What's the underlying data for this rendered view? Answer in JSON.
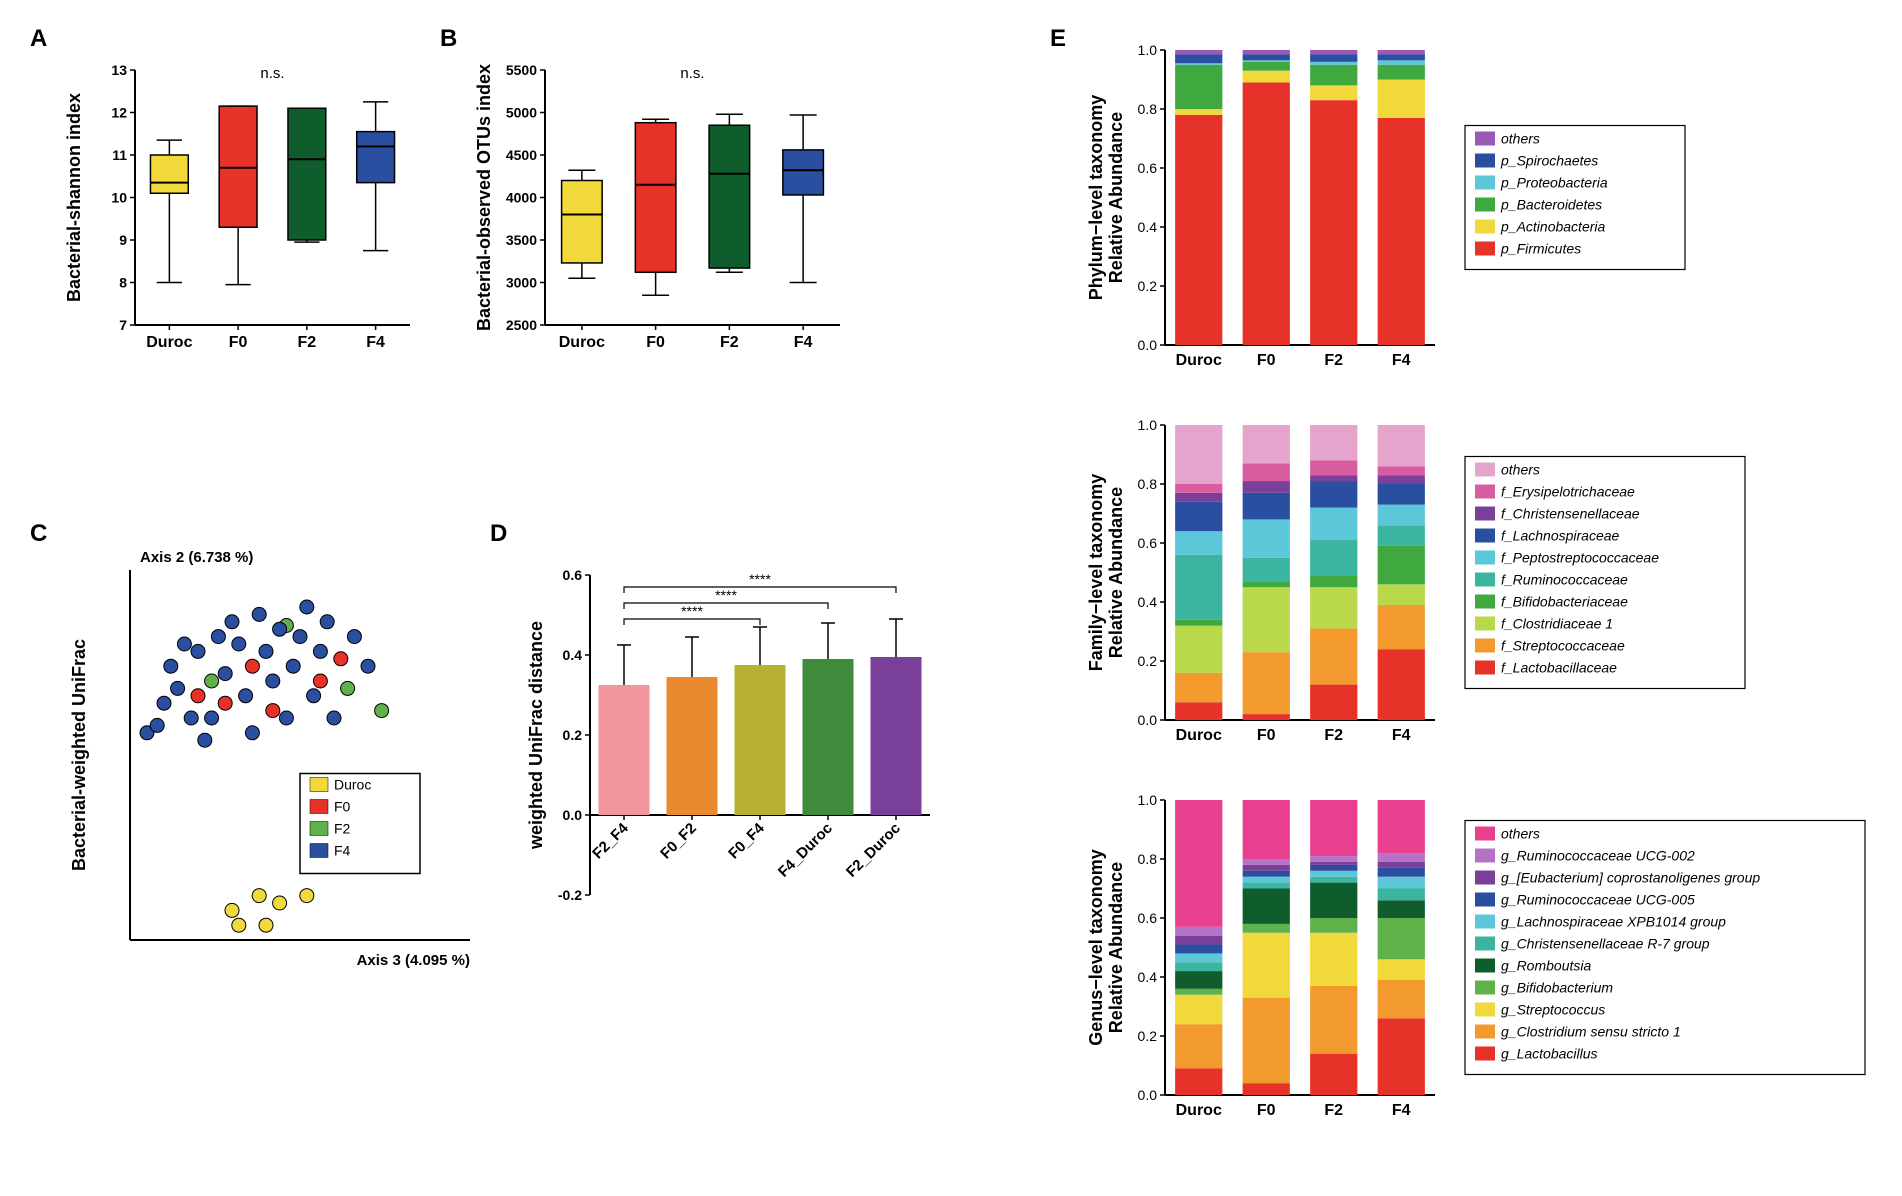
{
  "colors": {
    "duroc": "#f2d93b",
    "f0": "#e63228",
    "f2": "#0f5c2d",
    "f4": "#2a4fa0",
    "f2_green_light": "#5fb149"
  },
  "panelA": {
    "label": "A",
    "ylabel": "Bacterial-shannon index",
    "ylim": [
      7,
      13
    ],
    "yticks": [
      7,
      8,
      9,
      10,
      11,
      12,
      13
    ],
    "categories": [
      "Duroc",
      "F0",
      "F2",
      "F4"
    ],
    "ns_label": "n.s.",
    "boxes": [
      {
        "fill": "#f2d93b",
        "whisker_lo": 8.0,
        "q1": 10.1,
        "med": 10.35,
        "q3": 11.0,
        "whisker_hi": 11.35
      },
      {
        "fill": "#e63228",
        "whisker_lo": 7.95,
        "q1": 9.3,
        "med": 10.7,
        "q3": 12.15,
        "whisker_hi": 12.15
      },
      {
        "fill": "#0f5c2d",
        "whisker_lo": 8.95,
        "q1": 9.0,
        "med": 10.9,
        "q3": 12.1,
        "whisker_hi": 12.1
      },
      {
        "fill": "#2a4fa0",
        "whisker_lo": 8.75,
        "q1": 10.35,
        "med": 11.2,
        "q3": 11.55,
        "whisker_hi": 12.25
      }
    ]
  },
  "panelB": {
    "label": "B",
    "ylabel": "Bacterial-observed OTUs index",
    "ylim": [
      2500,
      5500
    ],
    "yticks": [
      2500,
      3000,
      3500,
      4000,
      4500,
      5000,
      5500
    ],
    "categories": [
      "Duroc",
      "F0",
      "F2",
      "F4"
    ],
    "ns_label": "n.s.",
    "boxes": [
      {
        "fill": "#f2d93b",
        "whisker_lo": 3050,
        "q1": 3230,
        "med": 3800,
        "q3": 4200,
        "whisker_hi": 4320
      },
      {
        "fill": "#e63228",
        "whisker_lo": 2850,
        "q1": 3120,
        "med": 4150,
        "q3": 4880,
        "whisker_hi": 4920
      },
      {
        "fill": "#0f5c2d",
        "whisker_lo": 3120,
        "q1": 3170,
        "med": 4280,
        "q3": 4850,
        "whisker_hi": 4980
      },
      {
        "fill": "#2a4fa0",
        "whisker_lo": 3000,
        "q1": 4030,
        "med": 4320,
        "q3": 4560,
        "whisker_hi": 4970
      }
    ]
  },
  "panelC": {
    "label": "C",
    "ylabel": "Bacterial-weighted UniFrac",
    "ytitle": "Axis 2 (6.738 %)",
    "xtitle": "Axis 3 (4.095 %)",
    "legend": [
      {
        "label": "Duroc",
        "color": "#f2d93b"
      },
      {
        "label": "F0",
        "color": "#e63228"
      },
      {
        "label": "F2",
        "color": "#5fb149"
      },
      {
        "label": "F4",
        "color": "#2a4fa0"
      }
    ],
    "points": [
      {
        "x": 0.3,
        "y": 0.08,
        "c": "#f2d93b"
      },
      {
        "x": 0.32,
        "y": 0.04,
        "c": "#f2d93b"
      },
      {
        "x": 0.38,
        "y": 0.12,
        "c": "#f2d93b"
      },
      {
        "x": 0.4,
        "y": 0.04,
        "c": "#f2d93b"
      },
      {
        "x": 0.44,
        "y": 0.1,
        "c": "#f2d93b"
      },
      {
        "x": 0.52,
        "y": 0.12,
        "c": "#f2d93b"
      },
      {
        "x": 0.2,
        "y": 0.66,
        "c": "#e63228"
      },
      {
        "x": 0.36,
        "y": 0.74,
        "c": "#e63228"
      },
      {
        "x": 0.42,
        "y": 0.62,
        "c": "#e63228"
      },
      {
        "x": 0.28,
        "y": 0.64,
        "c": "#e63228"
      },
      {
        "x": 0.62,
        "y": 0.76,
        "c": "#e63228"
      },
      {
        "x": 0.56,
        "y": 0.7,
        "c": "#e63228"
      },
      {
        "x": 0.24,
        "y": 0.7,
        "c": "#5fb149"
      },
      {
        "x": 0.64,
        "y": 0.68,
        "c": "#5fb149"
      },
      {
        "x": 0.74,
        "y": 0.62,
        "c": "#5fb149"
      },
      {
        "x": 0.46,
        "y": 0.85,
        "c": "#5fb149"
      },
      {
        "x": 0.05,
        "y": 0.56,
        "c": "#2a4fa0"
      },
      {
        "x": 0.08,
        "y": 0.58,
        "c": "#2a4fa0"
      },
      {
        "x": 0.1,
        "y": 0.64,
        "c": "#2a4fa0"
      },
      {
        "x": 0.12,
        "y": 0.74,
        "c": "#2a4fa0"
      },
      {
        "x": 0.14,
        "y": 0.68,
        "c": "#2a4fa0"
      },
      {
        "x": 0.16,
        "y": 0.8,
        "c": "#2a4fa0"
      },
      {
        "x": 0.18,
        "y": 0.6,
        "c": "#2a4fa0"
      },
      {
        "x": 0.2,
        "y": 0.78,
        "c": "#2a4fa0"
      },
      {
        "x": 0.22,
        "y": 0.54,
        "c": "#2a4fa0"
      },
      {
        "x": 0.24,
        "y": 0.6,
        "c": "#2a4fa0"
      },
      {
        "x": 0.26,
        "y": 0.82,
        "c": "#2a4fa0"
      },
      {
        "x": 0.28,
        "y": 0.72,
        "c": "#2a4fa0"
      },
      {
        "x": 0.3,
        "y": 0.86,
        "c": "#2a4fa0"
      },
      {
        "x": 0.32,
        "y": 0.8,
        "c": "#2a4fa0"
      },
      {
        "x": 0.34,
        "y": 0.66,
        "c": "#2a4fa0"
      },
      {
        "x": 0.36,
        "y": 0.56,
        "c": "#2a4fa0"
      },
      {
        "x": 0.38,
        "y": 0.88,
        "c": "#2a4fa0"
      },
      {
        "x": 0.4,
        "y": 0.78,
        "c": "#2a4fa0"
      },
      {
        "x": 0.42,
        "y": 0.7,
        "c": "#2a4fa0"
      },
      {
        "x": 0.44,
        "y": 0.84,
        "c": "#2a4fa0"
      },
      {
        "x": 0.46,
        "y": 0.6,
        "c": "#2a4fa0"
      },
      {
        "x": 0.48,
        "y": 0.74,
        "c": "#2a4fa0"
      },
      {
        "x": 0.5,
        "y": 0.82,
        "c": "#2a4fa0"
      },
      {
        "x": 0.52,
        "y": 0.9,
        "c": "#2a4fa0"
      },
      {
        "x": 0.54,
        "y": 0.66,
        "c": "#2a4fa0"
      },
      {
        "x": 0.56,
        "y": 0.78,
        "c": "#2a4fa0"
      },
      {
        "x": 0.58,
        "y": 0.86,
        "c": "#2a4fa0"
      },
      {
        "x": 0.6,
        "y": 0.6,
        "c": "#2a4fa0"
      },
      {
        "x": 0.66,
        "y": 0.82,
        "c": "#2a4fa0"
      },
      {
        "x": 0.7,
        "y": 0.74,
        "c": "#2a4fa0"
      }
    ]
  },
  "panelD": {
    "label": "D",
    "ylabel": "weighted UniFrac distance",
    "ylim": [
      -0.2,
      0.6
    ],
    "yticks": [
      -0.2,
      0.0,
      0.2,
      0.4,
      0.6
    ],
    "categories": [
      "F2_F4",
      "F0_F2",
      "F0_F4",
      "F4_Duroc",
      "F2_Duroc"
    ],
    "bars": [
      {
        "fill": "#f2969c",
        "value": 0.325,
        "err": 0.1
      },
      {
        "fill": "#e98a2e",
        "value": 0.345,
        "err": 0.1
      },
      {
        "fill": "#b7b033",
        "value": 0.375,
        "err": 0.095
      },
      {
        "fill": "#3f8a3b",
        "value": 0.39,
        "err": 0.09
      },
      {
        "fill": "#7a3f9b",
        "value": 0.395,
        "err": 0.095
      }
    ],
    "sig": [
      {
        "from": 0,
        "to": 2,
        "y": 0.49,
        "label": "****"
      },
      {
        "from": 0,
        "to": 3,
        "y": 0.53,
        "label": "****"
      },
      {
        "from": 0,
        "to": 4,
        "y": 0.57,
        "label": "****"
      }
    ]
  },
  "panelE": {
    "label": "E",
    "categories": [
      "Duroc",
      "F0",
      "F2",
      "F4"
    ],
    "ylim": [
      0,
      1
    ],
    "yticks": [
      0.0,
      0.2,
      0.4,
      0.6,
      0.8,
      1.0
    ],
    "phylum": {
      "ylabel": "Phylum−level taxonomy\nRelative Abundance",
      "legend": [
        {
          "label": "others",
          "color": "#9b59b6",
          "italic": true
        },
        {
          "label": "p_Spirochaetes",
          "color": "#2a4fa0",
          "italic": true
        },
        {
          "label": "p_Proteobacteria",
          "color": "#5bc7d8",
          "italic": true
        },
        {
          "label": "p_Bacteroidetes",
          "color": "#3fa83f",
          "italic": true
        },
        {
          "label": "p_Actinobacteria",
          "color": "#f2d93b",
          "italic": true
        },
        {
          "label": "p_Firmicutes",
          "color": "#e63228",
          "italic": true
        }
      ],
      "stacks": [
        [
          {
            "c": "#e63228",
            "v": 0.78
          },
          {
            "c": "#f2d93b",
            "v": 0.02
          },
          {
            "c": "#3fa83f",
            "v": 0.15
          },
          {
            "c": "#5bc7d8",
            "v": 0.005
          },
          {
            "c": "#2a4fa0",
            "v": 0.03
          },
          {
            "c": "#9b59b6",
            "v": 0.015
          }
        ],
        [
          {
            "c": "#e63228",
            "v": 0.89
          },
          {
            "c": "#f2d93b",
            "v": 0.04
          },
          {
            "c": "#3fa83f",
            "v": 0.03
          },
          {
            "c": "#5bc7d8",
            "v": 0.005
          },
          {
            "c": "#2a4fa0",
            "v": 0.02
          },
          {
            "c": "#9b59b6",
            "v": 0.015
          }
        ],
        [
          {
            "c": "#e63228",
            "v": 0.83
          },
          {
            "c": "#f2d93b",
            "v": 0.05
          },
          {
            "c": "#3fa83f",
            "v": 0.07
          },
          {
            "c": "#5bc7d8",
            "v": 0.01
          },
          {
            "c": "#2a4fa0",
            "v": 0.025
          },
          {
            "c": "#9b59b6",
            "v": 0.015
          }
        ],
        [
          {
            "c": "#e63228",
            "v": 0.77
          },
          {
            "c": "#f2d93b",
            "v": 0.13
          },
          {
            "c": "#3fa83f",
            "v": 0.05
          },
          {
            "c": "#5bc7d8",
            "v": 0.015
          },
          {
            "c": "#2a4fa0",
            "v": 0.02
          },
          {
            "c": "#9b59b6",
            "v": 0.015
          }
        ]
      ]
    },
    "family": {
      "ylabel": "Family−level taxonomy\nRelative Abundance",
      "legend": [
        {
          "label": "others",
          "color": "#e5a4cc",
          "italic": true
        },
        {
          "label": "f_Erysipelotrichaceae",
          "color": "#d85ca0",
          "italic": true
        },
        {
          "label": "f_Christensenellaceae",
          "color": "#7a3f9b",
          "italic": true
        },
        {
          "label": "f_Lachnospiraceae",
          "color": "#2a4fa0",
          "italic": true
        },
        {
          "label": "f_Peptostreptococcaceae",
          "color": "#5bc7d8",
          "italic": true
        },
        {
          "label": "f_Ruminococcaceae",
          "color": "#3bb5a0",
          "italic": true
        },
        {
          "label": "f_Bifidobacteriaceae",
          "color": "#3fa83f",
          "italic": true
        },
        {
          "label": "f_Clostridiaceae 1",
          "color": "#b9d94a",
          "italic": true
        },
        {
          "label": "f_Streptococcaceae",
          "color": "#f29a2e",
          "italic": true
        },
        {
          "label": "f_Lactobacillaceae",
          "color": "#e63228",
          "italic": true
        }
      ],
      "stacks": [
        [
          {
            "c": "#e63228",
            "v": 0.06
          },
          {
            "c": "#f29a2e",
            "v": 0.1
          },
          {
            "c": "#b9d94a",
            "v": 0.16
          },
          {
            "c": "#3fa83f",
            "v": 0.02
          },
          {
            "c": "#3bb5a0",
            "v": 0.22
          },
          {
            "c": "#5bc7d8",
            "v": 0.08
          },
          {
            "c": "#2a4fa0",
            "v": 0.1
          },
          {
            "c": "#7a3f9b",
            "v": 0.03
          },
          {
            "c": "#d85ca0",
            "v": 0.03
          },
          {
            "c": "#e5a4cc",
            "v": 0.2
          }
        ],
        [
          {
            "c": "#e63228",
            "v": 0.02
          },
          {
            "c": "#f29a2e",
            "v": 0.21
          },
          {
            "c": "#b9d94a",
            "v": 0.22
          },
          {
            "c": "#3fa83f",
            "v": 0.02
          },
          {
            "c": "#3bb5a0",
            "v": 0.08
          },
          {
            "c": "#5bc7d8",
            "v": 0.13
          },
          {
            "c": "#2a4fa0",
            "v": 0.09
          },
          {
            "c": "#7a3f9b",
            "v": 0.04
          },
          {
            "c": "#d85ca0",
            "v": 0.06
          },
          {
            "c": "#e5a4cc",
            "v": 0.13
          }
        ],
        [
          {
            "c": "#e63228",
            "v": 0.12
          },
          {
            "c": "#f29a2e",
            "v": 0.19
          },
          {
            "c": "#b9d94a",
            "v": 0.14
          },
          {
            "c": "#3fa83f",
            "v": 0.04
          },
          {
            "c": "#3bb5a0",
            "v": 0.12
          },
          {
            "c": "#5bc7d8",
            "v": 0.11
          },
          {
            "c": "#2a4fa0",
            "v": 0.09
          },
          {
            "c": "#7a3f9b",
            "v": 0.02
          },
          {
            "c": "#d85ca0",
            "v": 0.05
          },
          {
            "c": "#e5a4cc",
            "v": 0.12
          }
        ],
        [
          {
            "c": "#e63228",
            "v": 0.24
          },
          {
            "c": "#f29a2e",
            "v": 0.15
          },
          {
            "c": "#b9d94a",
            "v": 0.07
          },
          {
            "c": "#3fa83f",
            "v": 0.13
          },
          {
            "c": "#3bb5a0",
            "v": 0.07
          },
          {
            "c": "#5bc7d8",
            "v": 0.07
          },
          {
            "c": "#2a4fa0",
            "v": 0.07
          },
          {
            "c": "#7a3f9b",
            "v": 0.03
          },
          {
            "c": "#d85ca0",
            "v": 0.03
          },
          {
            "c": "#e5a4cc",
            "v": 0.14
          }
        ]
      ]
    },
    "genus": {
      "ylabel": "Genus−level taxonomy\nRelative Abundance",
      "legend": [
        {
          "label": "others",
          "color": "#e83f8e",
          "italic": true
        },
        {
          "label": "g_Ruminococcaceae UCG-002",
          "color": "#b473c5",
          "italic": true
        },
        {
          "label": "g_[Eubacterium] coprostanoligenes group",
          "color": "#7a3f9b",
          "italic": true
        },
        {
          "label": "g_Ruminococcaceae UCG-005",
          "color": "#2a4fa0",
          "italic": true
        },
        {
          "label": "g_Lachnospiraceae XPB1014 group",
          "color": "#5bc7d8",
          "italic": true
        },
        {
          "label": " g_Christensenellaceae R-7 group",
          "color": "#3bb5a0",
          "italic": true
        },
        {
          "label": "g_Romboutsia",
          "color": "#0f5c2d",
          "italic": true
        },
        {
          "label": "g_Bifidobacterium",
          "color": "#5fb149",
          "italic": true
        },
        {
          "label": "g_Streptococcus",
          "color": "#f2d93b",
          "italic": true
        },
        {
          "label": "g_Clostridium sensu stricto 1",
          "color": "#f29a2e",
          "italic": true
        },
        {
          "label": "g_Lactobacillus",
          "color": "#e63228",
          "italic": true
        }
      ],
      "stacks": [
        [
          {
            "c": "#e63228",
            "v": 0.09
          },
          {
            "c": "#f29a2e",
            "v": 0.15
          },
          {
            "c": "#f2d93b",
            "v": 0.1
          },
          {
            "c": "#5fb149",
            "v": 0.02
          },
          {
            "c": "#0f5c2d",
            "v": 0.06
          },
          {
            "c": "#3bb5a0",
            "v": 0.03
          },
          {
            "c": "#5bc7d8",
            "v": 0.03
          },
          {
            "c": "#2a4fa0",
            "v": 0.03
          },
          {
            "c": "#7a3f9b",
            "v": 0.03
          },
          {
            "c": "#b473c5",
            "v": 0.03
          },
          {
            "c": "#e83f8e",
            "v": 0.43
          }
        ],
        [
          {
            "c": "#e63228",
            "v": 0.04
          },
          {
            "c": "#f29a2e",
            "v": 0.29
          },
          {
            "c": "#f2d93b",
            "v": 0.22
          },
          {
            "c": "#5fb149",
            "v": 0.03
          },
          {
            "c": "#0f5c2d",
            "v": 0.12
          },
          {
            "c": "#3bb5a0",
            "v": 0.02
          },
          {
            "c": "#5bc7d8",
            "v": 0.02
          },
          {
            "c": "#2a4fa0",
            "v": 0.02
          },
          {
            "c": "#7a3f9b",
            "v": 0.02
          },
          {
            "c": "#b473c5",
            "v": 0.02
          },
          {
            "c": "#e83f8e",
            "v": 0.2
          }
        ],
        [
          {
            "c": "#e63228",
            "v": 0.14
          },
          {
            "c": "#f29a2e",
            "v": 0.23
          },
          {
            "c": "#f2d93b",
            "v": 0.18
          },
          {
            "c": "#5fb149",
            "v": 0.05
          },
          {
            "c": "#0f5c2d",
            "v": 0.12
          },
          {
            "c": "#3bb5a0",
            "v": 0.02
          },
          {
            "c": "#5bc7d8",
            "v": 0.02
          },
          {
            "c": "#2a4fa0",
            "v": 0.02
          },
          {
            "c": "#7a3f9b",
            "v": 0.01
          },
          {
            "c": "#b473c5",
            "v": 0.02
          },
          {
            "c": "#e83f8e",
            "v": 0.19
          }
        ],
        [
          {
            "c": "#e63228",
            "v": 0.26
          },
          {
            "c": "#f29a2e",
            "v": 0.13
          },
          {
            "c": "#f2d93b",
            "v": 0.07
          },
          {
            "c": "#5fb149",
            "v": 0.14
          },
          {
            "c": "#0f5c2d",
            "v": 0.06
          },
          {
            "c": "#3bb5a0",
            "v": 0.04
          },
          {
            "c": "#5bc7d8",
            "v": 0.04
          },
          {
            "c": "#2a4fa0",
            "v": 0.03
          },
          {
            "c": "#7a3f9b",
            "v": 0.02
          },
          {
            "c": "#b473c5",
            "v": 0.03
          },
          {
            "c": "#e83f8e",
            "v": 0.18
          }
        ]
      ]
    }
  }
}
